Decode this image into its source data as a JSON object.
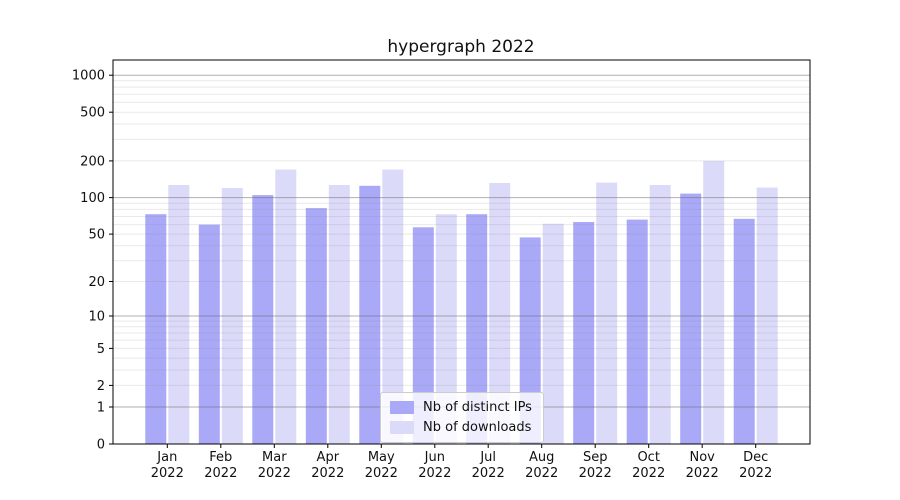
{
  "chart_data": {
    "type": "bar",
    "title": "hypergraph 2022",
    "categories": [
      "Jan 2022",
      "Feb 2022",
      "Mar 2022",
      "Apr 2022",
      "May 2022",
      "Jun 2022",
      "Jul 2022",
      "Aug 2022",
      "Sep 2022",
      "Oct 2022",
      "Nov 2022",
      "Dec 2022"
    ],
    "series": [
      {
        "name": "Nb of distinct IPs",
        "color": "#a9a9f7",
        "values": [
          73,
          60,
          105,
          82,
          125,
          57,
          73,
          47,
          63,
          66,
          108,
          67
        ]
      },
      {
        "name": "Nb of downloads",
        "color": "#dbdbf9",
        "values": [
          127,
          120,
          170,
          127,
          170,
          73,
          132,
          61,
          133,
          127,
          200,
          121
        ]
      }
    ],
    "yscale": "log1p",
    "ylim": [
      0,
      1330
    ],
    "y_ticks": [
      0,
      1,
      2,
      5,
      10,
      20,
      50,
      100,
      200,
      500,
      1000
    ],
    "y_major_gridlines": [
      1,
      10,
      100,
      1000
    ],
    "y_minor_gridlines": [
      2,
      3,
      4,
      5,
      6,
      7,
      8,
      9,
      20,
      30,
      40,
      50,
      60,
      70,
      80,
      90,
      200,
      300,
      400,
      500,
      600,
      700,
      800,
      900
    ],
    "grid": true,
    "legend_position": "lower center",
    "xlabel": "",
    "ylabel": ""
  },
  "colors": {
    "major_grid": "#b0b0b0",
    "minor_grid": "#e8e8e8",
    "spine": "#000000",
    "text": "#111111"
  }
}
